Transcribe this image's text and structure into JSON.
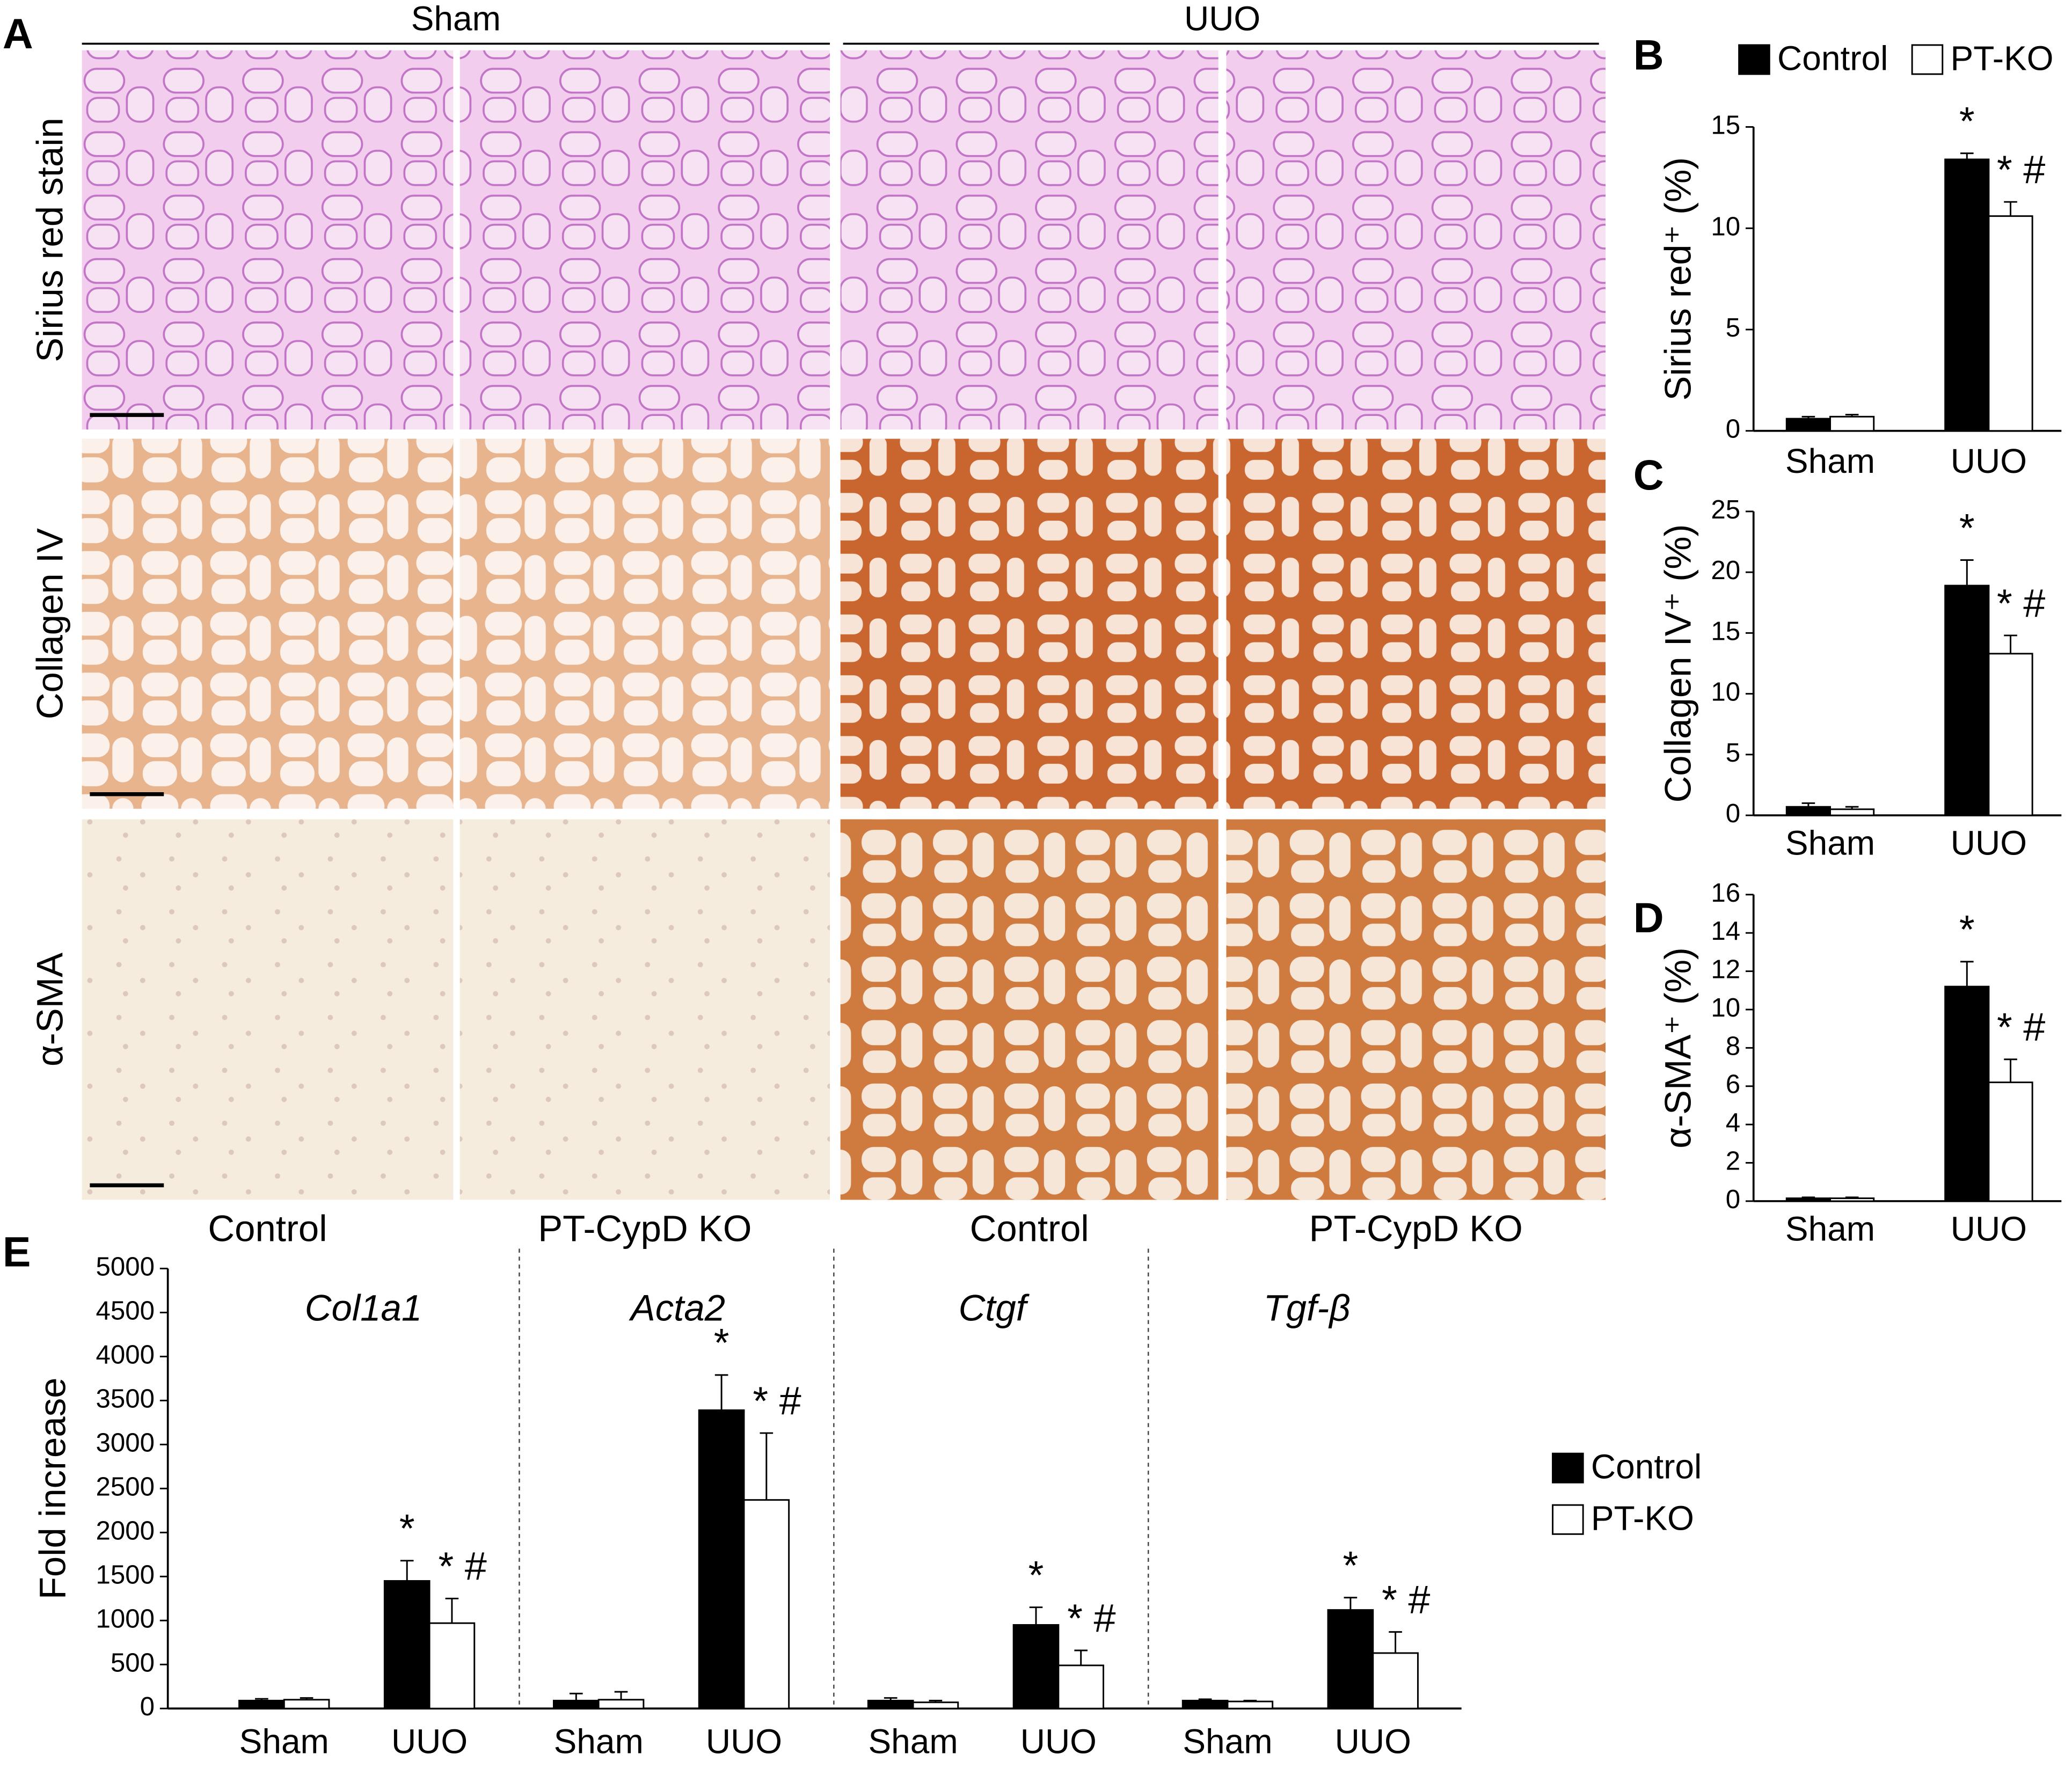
{
  "panel_a": {
    "label": "A",
    "groups": [
      "Sham",
      "UUO"
    ],
    "rows": [
      "Sirius red stain",
      "Collagen IV",
      "α-SMA"
    ],
    "columns": [
      "Control",
      "PT-CypD KO",
      "Control",
      "PT-CypD KO"
    ]
  },
  "chart_data": [
    {
      "type": "bar",
      "panel_label": "B",
      "ylabel": "Sirius red⁺ (%)",
      "categories": [
        "Sham",
        "UUO"
      ],
      "series": [
        {
          "name": "Control",
          "color": "#000000",
          "values": [
            0.6,
            13.4
          ],
          "errors": [
            0.1,
            0.3
          ],
          "annotations": [
            null,
            "*"
          ]
        },
        {
          "name": "PT-KO",
          "color": "#ffffff",
          "values": [
            0.7,
            10.6
          ],
          "errors": [
            0.1,
            0.7
          ],
          "annotations": [
            null,
            "* #"
          ]
        }
      ],
      "ylim": [
        0,
        15
      ],
      "yticks": [
        0,
        5,
        10,
        15
      ]
    },
    {
      "type": "bar",
      "panel_label": "C",
      "ylabel": "Collagen IV⁺ (%)",
      "categories": [
        "Sham",
        "UUO"
      ],
      "series": [
        {
          "color": "#000000",
          "values": [
            0.7,
            18.9
          ],
          "errors": [
            0.3,
            2.1
          ],
          "annotations": [
            null,
            "*"
          ]
        },
        {
          "color": "#ffffff",
          "values": [
            0.5,
            13.3
          ],
          "errors": [
            0.2,
            1.5
          ],
          "annotations": [
            null,
            "* #"
          ]
        }
      ],
      "ylim": [
        0,
        25
      ],
      "yticks": [
        0,
        5,
        10,
        15,
        20,
        25
      ]
    },
    {
      "type": "bar",
      "panel_label": "D",
      "ylabel": "α-SMA⁺ (%)",
      "categories": [
        "Sham",
        "UUO"
      ],
      "series": [
        {
          "color": "#000000",
          "values": [
            0.15,
            11.2
          ],
          "errors": [
            0.05,
            1.3
          ],
          "annotations": [
            null,
            "*"
          ]
        },
        {
          "color": "#ffffff",
          "values": [
            0.15,
            6.2
          ],
          "errors": [
            0.05,
            1.2
          ],
          "annotations": [
            null,
            "* #"
          ]
        }
      ],
      "ylim": [
        0,
        16
      ],
      "yticks": [
        0,
        2,
        4,
        6,
        8,
        10,
        12,
        14,
        16
      ]
    },
    {
      "type": "bar",
      "panel_label": "E",
      "ylabel": "Fold increase",
      "groups": [
        "Col1a1",
        "Acta2",
        "Ctgf",
        "Tgf-β"
      ],
      "categories": [
        "Sham",
        "UUO",
        "Sham",
        "UUO",
        "Sham",
        "UUO",
        "Sham",
        "UUO"
      ],
      "series": [
        {
          "name": "Control",
          "color": "#000000",
          "values": [
            90,
            1450,
            90,
            3390,
            90,
            950,
            90,
            1120
          ],
          "errors": [
            20,
            230,
            80,
            400,
            30,
            200,
            15,
            140
          ],
          "annotations": [
            null,
            "*",
            null,
            "*",
            null,
            "*",
            null,
            "*"
          ]
        },
        {
          "name": "PT-KO",
          "color": "#ffffff",
          "values": [
            100,
            970,
            100,
            2370,
            70,
            490,
            80,
            630
          ],
          "errors": [
            20,
            280,
            90,
            760,
            20,
            170,
            10,
            240
          ],
          "annotations": [
            null,
            "* #",
            null,
            "* #",
            null,
            "* #",
            null,
            "* #"
          ]
        }
      ],
      "ylim": [
        0,
        5000
      ],
      "yticks": [
        0,
        500,
        1000,
        1500,
        2000,
        2500,
        3000,
        3500,
        4000,
        4500,
        5000
      ]
    }
  ]
}
